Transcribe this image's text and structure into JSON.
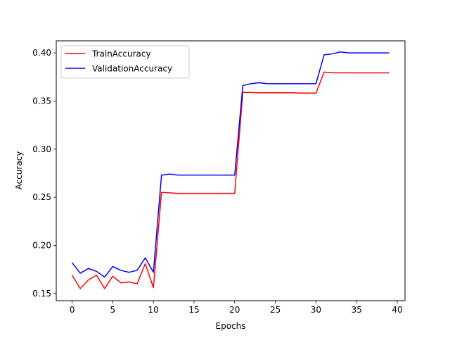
{
  "chart_data": {
    "type": "line",
    "title": "",
    "xlabel": "Epochs",
    "ylabel": "Accuracy",
    "xlim": [
      -1.95,
      40.95
    ],
    "ylim": [
      0.1425,
      0.4125
    ],
    "xticks": [
      0,
      5,
      10,
      15,
      20,
      25,
      30,
      35,
      40
    ],
    "yticks": [
      0.15,
      0.2,
      0.25,
      0.3,
      0.35,
      0.4
    ],
    "ytick_labels": [
      "0.15",
      "0.20",
      "0.25",
      "0.30",
      "0.35",
      "0.40"
    ],
    "grid": false,
    "legend_position": "top-left",
    "x": [
      0,
      1,
      2,
      3,
      4,
      5,
      6,
      7,
      8,
      9,
      10,
      11,
      12,
      13,
      14,
      15,
      16,
      17,
      18,
      19,
      20,
      21,
      22,
      23,
      24,
      25,
      26,
      27,
      28,
      29,
      30,
      31,
      32,
      33,
      34,
      35,
      36,
      37,
      38,
      39
    ],
    "series": [
      {
        "name": "TrainAccuracy",
        "color": "#ff0000",
        "values": [
          0.169,
          0.155,
          0.164,
          0.169,
          0.155,
          0.168,
          0.161,
          0.162,
          0.16,
          0.181,
          0.156,
          0.255,
          0.2545,
          0.254,
          0.254,
          0.254,
          0.254,
          0.254,
          0.254,
          0.254,
          0.254,
          0.359,
          0.3588,
          0.3585,
          0.3585,
          0.3585,
          0.3585,
          0.3585,
          0.3583,
          0.3582,
          0.3582,
          0.38,
          0.3793,
          0.3793,
          0.3793,
          0.3792,
          0.3792,
          0.3792,
          0.3792,
          0.3792
        ]
      },
      {
        "name": "ValidationAccuracy",
        "color": "#0000ff",
        "values": [
          0.182,
          0.171,
          0.176,
          0.173,
          0.167,
          0.178,
          0.174,
          0.172,
          0.174,
          0.187,
          0.172,
          0.273,
          0.274,
          0.273,
          0.273,
          0.273,
          0.273,
          0.273,
          0.273,
          0.273,
          0.273,
          0.366,
          0.368,
          0.369,
          0.368,
          0.368,
          0.368,
          0.368,
          0.368,
          0.368,
          0.368,
          0.398,
          0.399,
          0.401,
          0.4,
          0.4,
          0.4,
          0.4,
          0.4,
          0.4
        ]
      }
    ]
  }
}
